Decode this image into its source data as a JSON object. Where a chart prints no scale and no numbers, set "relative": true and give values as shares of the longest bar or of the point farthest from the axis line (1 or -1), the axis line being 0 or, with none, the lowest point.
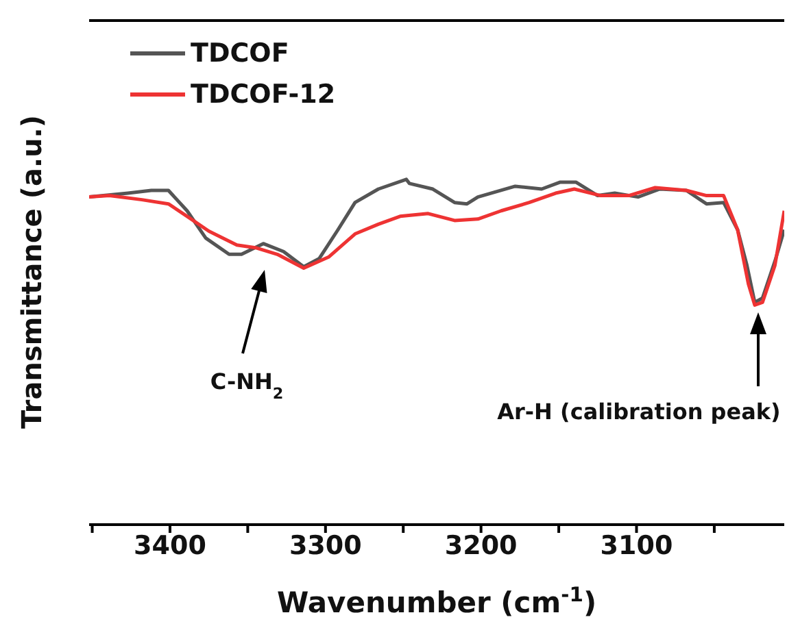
{
  "chart_data": {
    "type": "line",
    "relative": true,
    "xlabel": "Wavenumber (cm$^{-1}$)",
    "ylabel": "Transmittance (a.u.)",
    "xlim": [
      3452,
      3005
    ],
    "xticks": [
      {
        "value": 3450,
        "label": null
      },
      3400,
      {
        "value": 3350,
        "label": null
      },
      3300,
      {
        "value": 3250,
        "label": null
      },
      3200,
      {
        "value": 3150,
        "label": null
      },
      3100,
      {
        "value": 3050,
        "label": null
      }
    ],
    "legend": "top left",
    "series": [
      {
        "name": "TDCOF",
        "color": "#555555",
        "x": [
          3452,
          3427,
          3412,
          3401,
          3389,
          3377,
          3362,
          3354,
          3340,
          3327,
          3314,
          3304,
          3292,
          3281,
          3266,
          3248,
          3246,
          3231,
          3217,
          3209,
          3202,
          3178,
          3161,
          3149,
          3139,
          3125,
          3114,
          3099,
          3085,
          3068,
          3055,
          3044,
          3035,
          3029,
          3024,
          3019,
          3011,
          3005
        ],
        "values": [
          0.949,
          0.96,
          0.968,
          0.968,
          0.909,
          0.83,
          0.783,
          0.783,
          0.814,
          0.791,
          0.747,
          0.771,
          0.854,
          0.933,
          0.972,
          1,
          0.988,
          0.972,
          0.933,
          0.929,
          0.949,
          0.98,
          0.972,
          0.992,
          0.992,
          0.953,
          0.96,
          0.949,
          0.972,
          0.968,
          0.929,
          0.933,
          0.854,
          0.751,
          0.644,
          0.656,
          0.763,
          0.854
        ]
      },
      {
        "name": "TDCOF-12",
        "color": "#ee3333",
        "x": [
          3452,
          3439,
          3418,
          3401,
          3389,
          3375,
          3357,
          3345,
          3331,
          3314,
          3298,
          3281,
          3266,
          3252,
          3234,
          3217,
          3202,
          3187,
          3169,
          3152,
          3140,
          3123,
          3105,
          3088,
          3068,
          3055,
          3044,
          3035,
          3028,
          3024,
          3019,
          3011,
          3005
        ],
        "values": [
          0.949,
          0.953,
          0.941,
          0.929,
          0.893,
          0.85,
          0.81,
          0.802,
          0.783,
          0.743,
          0.775,
          0.842,
          0.87,
          0.893,
          0.901,
          0.881,
          0.885,
          0.909,
          0.933,
          0.96,
          0.972,
          0.953,
          0.953,
          0.976,
          0.968,
          0.953,
          0.953,
          0.854,
          0.696,
          0.636,
          0.644,
          0.751,
          0.909
        ]
      }
    ],
    "annotations": [
      "C-NH$_{2}$",
      "Ar-H (calibration peak)"
    ]
  }
}
